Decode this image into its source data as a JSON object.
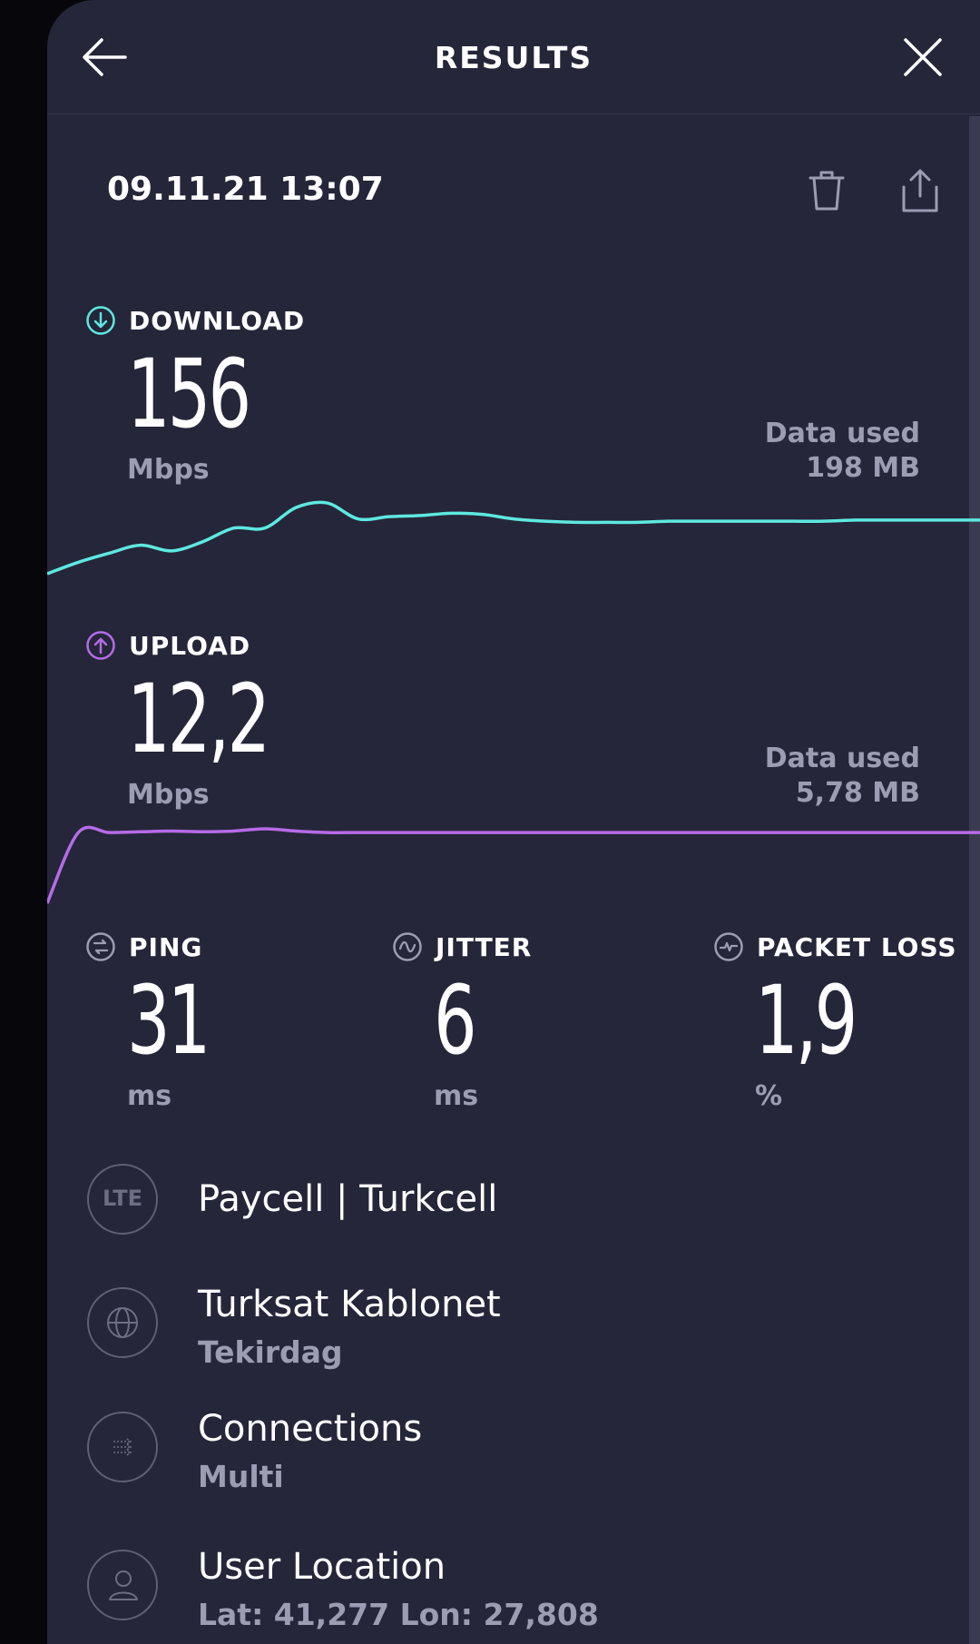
{
  "header": {
    "title": "RESULTS"
  },
  "result": {
    "datetime": "09.11.21 13:07"
  },
  "download": {
    "label": "DOWNLOAD",
    "value": "156",
    "unit": "Mbps",
    "data_used_label": "Data used",
    "data_used_value": "198 MB",
    "color": "#5ee8e2"
  },
  "upload": {
    "label": "UPLOAD",
    "value": "12,2",
    "unit": "Mbps",
    "data_used_label": "Data used",
    "data_used_value": "5,78 MB",
    "color": "#b66be8"
  },
  "ping": {
    "label": "PING",
    "value": "31",
    "unit": "ms"
  },
  "jitter": {
    "label": "JITTER",
    "value": "6",
    "unit": "ms"
  },
  "packet_loss": {
    "label": "PACKET LOSS",
    "value": "1,9",
    "unit": "%"
  },
  "info": {
    "provider": {
      "badge": "LTE",
      "title": "Paycell | Turkcell"
    },
    "server": {
      "title": "Turksat Kablonet",
      "subtitle": "Tekirdag"
    },
    "connections": {
      "title": "Connections",
      "subtitle": "Multi"
    },
    "location": {
      "title": "User Location",
      "subtitle": "Lat: 41,277 Lon: 27,808"
    }
  },
  "chart_data": [
    {
      "type": "line",
      "series": [
        {
          "values": [
            0,
            10,
            18,
            25,
            20,
            28,
            40,
            40,
            58,
            62,
            48,
            50,
            51,
            53,
            52,
            48,
            46,
            45,
            45,
            45,
            46,
            46,
            46,
            46,
            46,
            46,
            47,
            47,
            47,
            47,
            47
          ]
        }
      ],
      "xlabel": "",
      "ylabel": "",
      "ylim": [
        0,
        70
      ]
    },
    {
      "type": "line",
      "series": [
        {
          "values": [
            0,
            95,
            95,
            96,
            97,
            96,
            97,
            100,
            97,
            95,
            95,
            95,
            95,
            95,
            95,
            95,
            95,
            95,
            95,
            95,
            95,
            95,
            95,
            95,
            95,
            95,
            95,
            95,
            95,
            95,
            95
          ]
        }
      ],
      "xlabel": "",
      "ylabel": "",
      "ylim": [
        0,
        100
      ]
    }
  ]
}
